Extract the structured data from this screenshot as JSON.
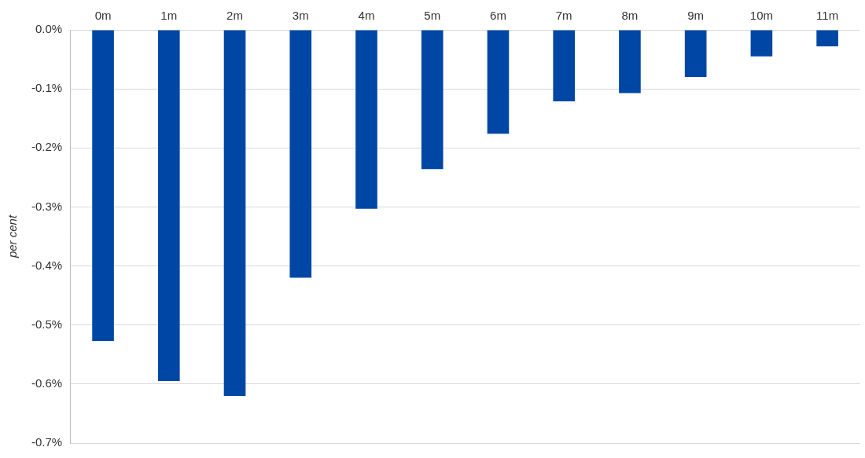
{
  "chart_data": {
    "type": "bar",
    "y_label": "per cent",
    "categories": [
      "0m",
      "1m",
      "2m",
      "3m",
      "4m",
      "5m",
      "6m",
      "7m",
      "8m",
      "9m",
      "10m",
      "11m"
    ],
    "values": [
      -0.527,
      -0.595,
      -0.62,
      -0.42,
      -0.303,
      -0.236,
      -0.176,
      -0.121,
      -0.107,
      -0.08,
      -0.045,
      -0.028
    ],
    "color": "#0047a5",
    "ylim": [
      -0.7,
      0
    ],
    "yticks": [
      {
        "value": 0,
        "label": "0.0%"
      },
      {
        "value": -0.1,
        "label": "-0.1%"
      },
      {
        "value": -0.2,
        "label": "-0.2%"
      },
      {
        "value": -0.3,
        "label": "-0.3%"
      },
      {
        "value": -0.4,
        "label": "-0.4%"
      },
      {
        "value": -0.5,
        "label": "-0.5%"
      },
      {
        "value": -0.6,
        "label": "-0.6%"
      },
      {
        "value": -0.7,
        "label": "-0.7%"
      }
    ],
    "grid": true
  }
}
